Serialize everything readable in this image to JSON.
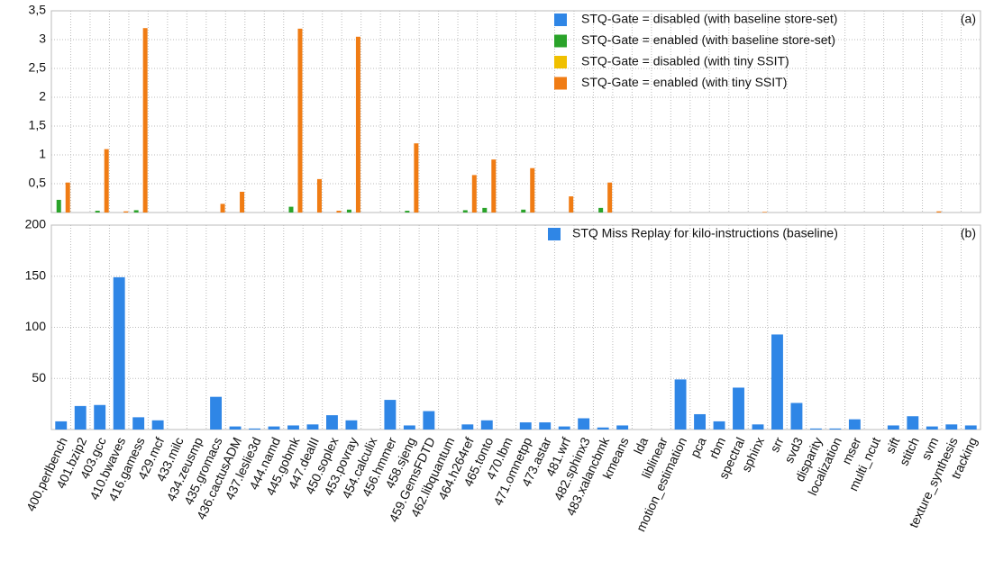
{
  "chart_data": [
    {
      "type": "bar",
      "annotation": "(a)",
      "legend": "upper right",
      "ylim": [
        0,
        3.5
      ],
      "yticks": [
        {
          "value": 0.5,
          "label": "0,5"
        },
        1,
        {
          "value": 1.5,
          "label": "1,5"
        },
        2,
        {
          "value": 2.5,
          "label": "2,5"
        },
        3,
        {
          "value": 3.5,
          "label": "3,5"
        }
      ],
      "grid": true,
      "series": [
        {
          "name": "STQ-Gate = disabled (with baseline store-set)",
          "color": "#2f86e6",
          "values": [
            0,
            0,
            0,
            0,
            0,
            0,
            0,
            0,
            0,
            0,
            0,
            0,
            0,
            0,
            0,
            0,
            0,
            0,
            0,
            0,
            0,
            0,
            0,
            0,
            0,
            0,
            0,
            0,
            0,
            0,
            0,
            0,
            0,
            0,
            0,
            0,
            0,
            0,
            0,
            0,
            0,
            0,
            0,
            0,
            0,
            0,
            0,
            0
          ]
        },
        {
          "name": "STQ-Gate = enabled (with baseline store-set)",
          "color": "#2aa32a",
          "values": [
            0.22,
            0,
            0.03,
            0,
            0.04,
            0,
            0,
            0,
            0,
            0,
            0,
            0,
            0.1,
            0,
            0,
            0.05,
            0,
            0,
            0.03,
            0,
            0,
            0.04,
            0.08,
            0,
            0.05,
            0,
            0,
            0,
            0.08,
            0,
            0,
            0,
            0,
            0,
            0,
            0,
            0,
            0,
            0,
            0,
            0,
            0,
            0,
            0,
            0,
            0,
            0,
            0
          ]
        },
        {
          "name": "STQ-Gate = disabled (with tiny SSIT)",
          "color": "#f0c000",
          "values": [
            0,
            0,
            0,
            0,
            0,
            0,
            0,
            0,
            0,
            0,
            0,
            0,
            0,
            0,
            0,
            0,
            0,
            0,
            0,
            0,
            0,
            0,
            0,
            0,
            0,
            0,
            0,
            0,
            0,
            0,
            0,
            0,
            0,
            0,
            0,
            0,
            0,
            0,
            0,
            0,
            0,
            0,
            0,
            0,
            0,
            0,
            0,
            0
          ]
        },
        {
          "name": "STQ-Gate = enabled (with tiny SSIT)",
          "color": "#f07c14",
          "values": [
            0.52,
            0,
            1.1,
            0.02,
            3.2,
            0,
            0,
            0,
            0.15,
            0.36,
            0,
            0,
            3.19,
            0.58,
            0.03,
            3.05,
            0,
            0,
            1.2,
            0,
            0,
            0.65,
            0.92,
            0,
            0.77,
            0,
            0.28,
            0,
            0.52,
            0,
            0,
            0,
            0,
            0,
            0,
            0,
            0.01,
            0,
            0,
            0,
            0,
            0,
            0,
            0,
            0,
            0.02,
            0,
            0
          ]
        }
      ]
    },
    {
      "type": "bar",
      "annotation": "(b)",
      "legend": "upper right",
      "ylim": [
        0,
        200
      ],
      "yticks": [
        50,
        100,
        150,
        200
      ],
      "grid": true,
      "categories": [
        "400.perlbench",
        "401.bzip2",
        "403.gcc",
        "410.bwaves",
        "416.gamess",
        "429.mcf",
        "433.milc",
        "434.zeusmp",
        "435.gromacs",
        "436.cactusADM",
        "437.leslie3d",
        "444.namd",
        "445.gobmk",
        "447.dealII",
        "450.soplex",
        "453.povray",
        "454.calculix",
        "456.hmmer",
        "458.sjeng",
        "459.GemsFDTD",
        "462.libquantum",
        "464.h264ref",
        "465.tonto",
        "470.lbm",
        "471.omnetpp",
        "473.astar",
        "481.wrf",
        "482.sphinx3",
        "483.xalancbmk",
        "kmeans",
        "lda",
        "liblinear",
        "motion_estimation",
        "pca",
        "rbm",
        "spectral",
        "sphinx",
        "srr",
        "svd3",
        "disparity",
        "localization",
        "mser",
        "multi_ncut",
        "sift",
        "stitch",
        "svm",
        "texture_synthesis",
        "tracking"
      ],
      "series": [
        {
          "name": "STQ Miss Replay for kilo-instructions  (baseline)",
          "color": "#2f86e6",
          "values": [
            8,
            23,
            24,
            149,
            12,
            9,
            0,
            0,
            32,
            3,
            1,
            3,
            4,
            5,
            14,
            9,
            0,
            29,
            4,
            18,
            0,
            5,
            9,
            0,
            7,
            7,
            3,
            11,
            2,
            4,
            0,
            0,
            49,
            15,
            8,
            41,
            5,
            93,
            26,
            1,
            1,
            10,
            0,
            4,
            13,
            3,
            5,
            4
          ]
        }
      ]
    }
  ]
}
